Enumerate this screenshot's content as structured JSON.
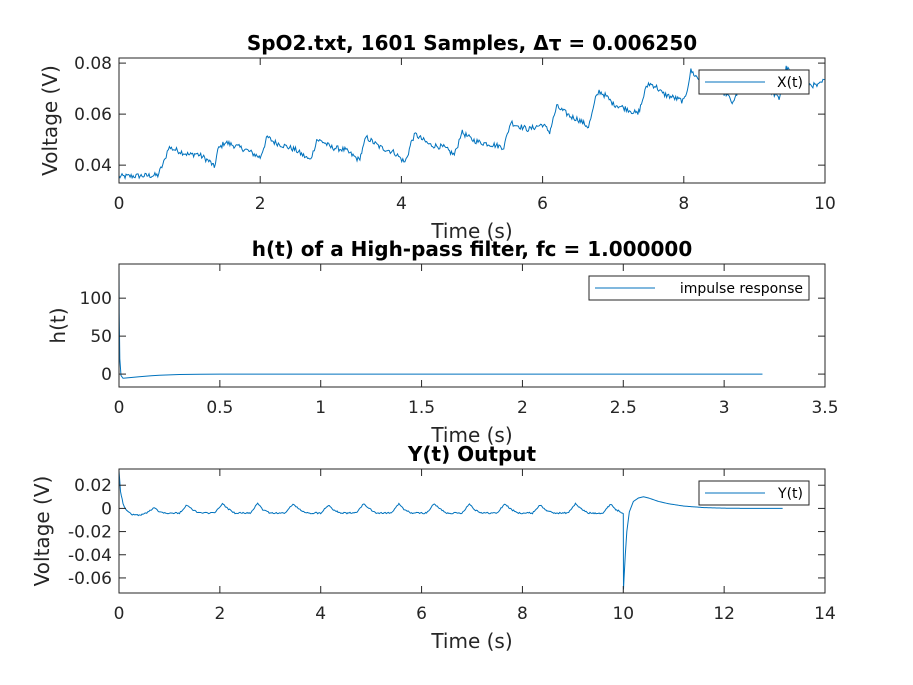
{
  "chart_data": [
    {
      "type": "line",
      "title": "SpO2.txt, 1601 Samples, Δτ = 0.006250",
      "xlabel": "Time (s)",
      "ylabel": "Voltage (V)",
      "xlim": [
        0,
        10
      ],
      "ylim": [
        0.033,
        0.082
      ],
      "xticks": [
        0,
        2,
        4,
        6,
        8,
        10
      ],
      "xtick_labels": [
        "0",
        "2",
        "4",
        "6",
        "8",
        "10"
      ],
      "yticks": [
        0.04,
        0.06,
        0.08
      ],
      "ytick_labels": [
        "0.04",
        "0.06",
        "0.08"
      ],
      "legend": "top-right",
      "series": [
        {
          "name": "X(t)",
          "color": "#0072BD",
          "x": [
            0,
            0.3,
            0.55,
            0.65,
            0.7,
            0.8,
            0.9,
            1.0,
            1.1,
            1.2,
            1.3,
            1.35,
            1.4,
            1.5,
            1.6,
            1.8,
            2.0,
            2.05,
            2.1,
            2.2,
            2.3,
            2.5,
            2.7,
            2.75,
            2.8,
            2.9,
            3.0,
            3.2,
            3.4,
            3.45,
            3.5,
            3.6,
            3.7,
            3.9,
            4.05,
            4.1,
            4.15,
            4.2,
            4.3,
            4.4,
            4.6,
            4.75,
            4.8,
            4.85,
            4.9,
            5.0,
            5.1,
            5.3,
            5.45,
            5.5,
            5.55,
            5.6,
            5.7,
            5.8,
            6.0,
            6.1,
            6.15,
            6.2,
            6.3,
            6.4,
            6.5,
            6.65,
            6.7,
            6.75,
            6.8,
            6.9,
            7.0,
            7.2,
            7.35,
            7.4,
            7.45,
            7.5,
            7.6,
            7.7,
            7.9,
            8.0,
            8.05,
            8.1,
            8.2,
            8.3,
            8.4,
            8.6,
            8.7,
            8.75,
            8.8,
            8.9,
            9.0,
            9.2,
            9.35,
            9.4,
            9.45,
            9.5,
            9.6,
            9.7,
            9.9,
            10.0
          ],
          "values": [
            0.0355,
            0.0358,
            0.036,
            0.042,
            0.047,
            0.046,
            0.045,
            0.044,
            0.0445,
            0.043,
            0.041,
            0.039,
            0.046,
            0.049,
            0.048,
            0.046,
            0.043,
            0.047,
            0.051,
            0.049,
            0.048,
            0.046,
            0.042,
            0.045,
            0.05,
            0.049,
            0.047,
            0.046,
            0.042,
            0.046,
            0.051,
            0.049,
            0.047,
            0.045,
            0.041,
            0.045,
            0.05,
            0.052,
            0.05,
            0.048,
            0.047,
            0.044,
            0.048,
            0.053,
            0.052,
            0.05,
            0.049,
            0.048,
            0.047,
            0.052,
            0.057,
            0.056,
            0.055,
            0.054,
            0.056,
            0.053,
            0.058,
            0.063,
            0.061,
            0.059,
            0.058,
            0.055,
            0.06,
            0.066,
            0.069,
            0.067,
            0.064,
            0.062,
            0.06,
            0.064,
            0.069,
            0.072,
            0.071,
            0.068,
            0.066,
            0.065,
            0.07,
            0.077,
            0.074,
            0.071,
            0.07,
            0.068,
            0.064,
            0.068,
            0.074,
            0.072,
            0.071,
            0.07,
            0.066,
            0.072,
            0.078,
            0.077,
            0.074,
            0.072,
            0.071,
            0.0735
          ]
        }
      ]
    },
    {
      "type": "line",
      "title": "h(t) of a High-pass filter, fc = 1.000000",
      "xlabel": "Time (s)",
      "ylabel": "h(t)",
      "xlim": [
        0,
        3.5
      ],
      "ylim": [
        -17,
        145
      ],
      "xticks": [
        0,
        0.5,
        1,
        1.5,
        2,
        2.5,
        3,
        3.5
      ],
      "xtick_labels": [
        "0",
        "0.5",
        "1",
        "1.5",
        "2",
        "2.5",
        "3",
        "3.5"
      ],
      "yticks": [
        0,
        50,
        100
      ],
      "ytick_labels": [
        "0",
        "50",
        "100"
      ],
      "legend": "top-right",
      "series": [
        {
          "name": "impulse response",
          "color": "#0072BD",
          "x": [
            0,
            0.001,
            0.004,
            0.01,
            0.02,
            0.04,
            0.06,
            0.08,
            0.1,
            0.13,
            0.16,
            0.2,
            0.25,
            0.3,
            0.4,
            0.5,
            0.7,
            1.0,
            1.5,
            2.0,
            2.5,
            3.0,
            3.19
          ],
          "values": [
            145,
            80,
            20,
            -2,
            -5.5,
            -5.0,
            -4.5,
            -4.0,
            -3.5,
            -2.8,
            -2.2,
            -1.5,
            -1.0,
            -0.6,
            -0.2,
            -0.05,
            0,
            0,
            0,
            0,
            0,
            0,
            0
          ]
        }
      ]
    },
    {
      "type": "line",
      "title": "Y(t) Output",
      "xlabel": "Time (s)",
      "ylabel": "Voltage (V)",
      "xlim": [
        0,
        14
      ],
      "ylim": [
        -0.073,
        0.034
      ],
      "xticks": [
        0,
        2,
        4,
        6,
        8,
        10,
        12,
        14
      ],
      "xtick_labels": [
        "0",
        "2",
        "4",
        "6",
        "8",
        "10",
        "12",
        "14"
      ],
      "yticks": [
        -0.06,
        -0.04,
        -0.02,
        0,
        0.02
      ],
      "ytick_labels": [
        "-0.06",
        "-0.04",
        "-0.02",
        "0",
        "0.02"
      ],
      "legend": "top-right",
      "series": [
        {
          "name": "Y(t)",
          "color": "#0072BD",
          "x": [
            0,
            0.03,
            0.08,
            0.15,
            0.25,
            0.4,
            0.55,
            0.7,
            0.8,
            0.95,
            1.2,
            1.35,
            1.45,
            1.6,
            1.9,
            2.05,
            2.15,
            2.3,
            2.6,
            2.75,
            2.85,
            3.0,
            3.3,
            3.45,
            3.55,
            3.7,
            4.0,
            4.15,
            4.25,
            4.4,
            4.7,
            4.85,
            4.95,
            5.1,
            5.4,
            5.55,
            5.65,
            5.8,
            6.1,
            6.25,
            6.35,
            6.5,
            6.8,
            6.95,
            7.05,
            7.2,
            7.5,
            7.65,
            7.75,
            7.9,
            8.2,
            8.35,
            8.45,
            8.6,
            8.9,
            9.05,
            9.15,
            9.3,
            9.6,
            9.75,
            9.85,
            10.0,
            10.004,
            10.015,
            10.04,
            10.07,
            10.12,
            10.2,
            10.3,
            10.4,
            10.5,
            10.7,
            10.9,
            11.2,
            11.6,
            12.0,
            12.5,
            13.16
          ],
          "values": [
            0.033,
            0.015,
            0.004,
            -0.002,
            -0.005,
            -0.006,
            -0.004,
            0.001,
            -0.003,
            -0.004,
            -0.004,
            0.003,
            -0.001,
            -0.004,
            -0.004,
            0.004,
            0.0,
            -0.004,
            -0.004,
            0.004,
            -0.001,
            -0.004,
            -0.004,
            0.004,
            0.0,
            -0.004,
            -0.004,
            0.003,
            -0.001,
            -0.004,
            -0.004,
            0.004,
            0.0,
            -0.004,
            -0.004,
            0.004,
            -0.001,
            -0.004,
            -0.004,
            0.004,
            0.0,
            -0.004,
            -0.004,
            0.004,
            -0.001,
            -0.004,
            -0.004,
            0.004,
            0.0,
            -0.004,
            -0.004,
            0.003,
            -0.001,
            -0.004,
            -0.004,
            0.004,
            0.0,
            -0.004,
            -0.004,
            0.004,
            -0.001,
            -0.004,
            -0.07,
            -0.06,
            -0.04,
            -0.02,
            -0.003,
            0.006,
            0.009,
            0.01,
            0.009,
            0.006,
            0.004,
            0.002,
            0.0007,
            0.0002,
            0.0,
            0.0
          ]
        }
      ]
    }
  ]
}
